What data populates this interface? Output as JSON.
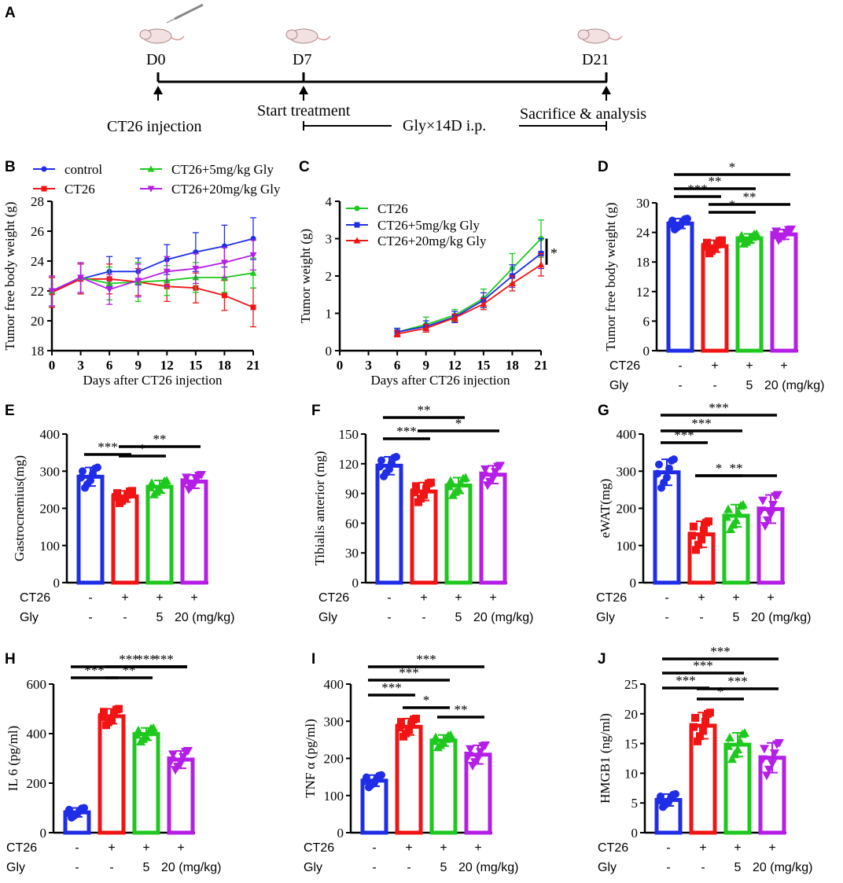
{
  "panel_labels": [
    "A",
    "B",
    "C",
    "D",
    "E",
    "F",
    "G",
    "H",
    "I",
    "J"
  ],
  "timeline": {
    "days": [
      "D0",
      "D7",
      "D21"
    ],
    "injection": "CT26 injection",
    "start": "Start treatment",
    "sacrifice": "Sacrifice & analysis",
    "treatment": "Gly×14D i.p."
  },
  "colors": {
    "control": "#1f2de6",
    "ct26": "#f01414",
    "gly5": "#1ec81e",
    "gly20": "#b41ee6"
  },
  "xlabels": {
    "row_ct26": [
      "CT26",
      "-",
      "+",
      "+",
      "+"
    ],
    "row_gly": [
      "Gly",
      "-",
      "-",
      "5",
      "20 (mg/kg)"
    ]
  },
  "chart_data": [
    {
      "panel": "B",
      "type": "line",
      "title": "",
      "xlabel": "Days after CT26 injection",
      "ylabel": "Tumor free body weight (g)",
      "x": [
        0,
        3,
        6,
        9,
        12,
        15,
        18,
        21
      ],
      "xticks": [
        "0",
        "3",
        "6",
        "9",
        "12",
        "15",
        "18",
        "21"
      ],
      "ylim": [
        18,
        28
      ],
      "yticks": [
        "18",
        "20",
        "22",
        "24",
        "26",
        "28"
      ],
      "legend": [
        "control",
        "CT26",
        "CT26+5mg/kg Gly",
        "CT26+20mg/kg Gly"
      ],
      "series": [
        {
          "name": "control",
          "values": [
            21.9,
            22.8,
            23.3,
            23.3,
            24.1,
            24.6,
            25.0,
            25.5
          ],
          "err": [
            1.0,
            1.0,
            1.0,
            0.9,
            1.0,
            1.3,
            1.4,
            1.4
          ]
        },
        {
          "name": "CT26",
          "values": [
            21.9,
            22.8,
            22.8,
            22.6,
            22.3,
            22.2,
            21.7,
            20.9
          ],
          "err": [
            1.0,
            1.0,
            1.0,
            0.9,
            1.0,
            1.0,
            1.0,
            1.3
          ]
        },
        {
          "name": "CT26+5mg/kg Gly",
          "values": [
            22.0,
            22.9,
            22.5,
            22.6,
            22.7,
            22.9,
            22.9,
            23.2
          ],
          "err": [
            1.0,
            1.0,
            1.1,
            1.3,
            1.0,
            1.0,
            1.0,
            1.0
          ]
        },
        {
          "name": "CT26+20mg/kg Gly",
          "values": [
            22.0,
            22.9,
            22.1,
            22.7,
            23.3,
            23.5,
            23.9,
            24.4
          ],
          "err": [
            1.0,
            1.0,
            1.0,
            1.1,
            1.0,
            1.0,
            1.0,
            1.0
          ]
        }
      ]
    },
    {
      "panel": "C",
      "type": "line",
      "xlabel": "Days after CT26 injection",
      "ylabel": "Tumor weight (g)",
      "x": [
        6,
        9,
        12,
        15,
        18,
        21
      ],
      "xticks": [
        "0",
        "3",
        "6",
        "9",
        "12",
        "15",
        "18",
        "21"
      ],
      "ylim": [
        0,
        4
      ],
      "yticks": [
        "0",
        "1",
        "2",
        "3",
        "4"
      ],
      "legend": [
        "CT26",
        "CT26+5mg/kg Gly",
        "CT26+20mg/kg Gly"
      ],
      "significance": "*",
      "series": [
        {
          "name": "CT26",
          "values": [
            0.5,
            0.7,
            0.95,
            1.4,
            2.2,
            3.0
          ],
          "err": [
            0.1,
            0.2,
            0.15,
            0.25,
            0.4,
            0.5
          ]
        },
        {
          "name": "CT26+5mg/kg Gly",
          "values": [
            0.5,
            0.65,
            0.9,
            1.35,
            2.0,
            2.6
          ],
          "err": [
            0.1,
            0.15,
            0.15,
            0.2,
            0.3,
            0.4
          ]
        },
        {
          "name": "CT26+20mg/kg Gly",
          "values": [
            0.45,
            0.6,
            0.88,
            1.25,
            1.8,
            2.3
          ],
          "err": [
            0.08,
            0.1,
            0.1,
            0.15,
            0.2,
            0.3
          ]
        }
      ]
    },
    {
      "panel": "D",
      "type": "bar",
      "ylabel": "Tumor free body weight (g)",
      "ylim": [
        0,
        30
      ],
      "yticks": [
        "0",
        "6",
        "12",
        "18",
        "24",
        "30"
      ],
      "categories": [
        "control",
        "CT26",
        "CT26+5mg/kg Gly",
        "CT26+20mg/kg Gly"
      ],
      "values": [
        25.8,
        21.2,
        22.8,
        23.6
      ],
      "err": [
        1.0,
        1.2,
        0.9,
        1.0
      ],
      "brackets": [
        {
          "from": 0,
          "to": 1,
          "label": "***"
        },
        {
          "from": 0,
          "to": 2,
          "label": "**"
        },
        {
          "from": 0,
          "to": 3,
          "label": "*"
        },
        {
          "from": 1,
          "to": 2,
          "label": "*"
        },
        {
          "from": 1,
          "to": 3,
          "label": "**"
        }
      ]
    },
    {
      "panel": "E",
      "type": "bar",
      "ylabel": "Gastrocnemius(mg)",
      "ylim": [
        0,
        400
      ],
      "yticks": [
        "0",
        "100",
        "200",
        "300",
        "400"
      ],
      "categories": [
        "control",
        "CT26",
        "CT26+5mg/kg Gly",
        "CT26+20mg/kg Gly"
      ],
      "values": [
        285,
        232,
        258,
        272
      ],
      "err": [
        25,
        15,
        17,
        18
      ],
      "brackets": [
        {
          "from": 0,
          "to": 1,
          "label": "***"
        },
        {
          "from": 1,
          "to": 2,
          "label": "*"
        },
        {
          "from": 1,
          "to": 3,
          "label": "**"
        }
      ]
    },
    {
      "panel": "F",
      "type": "bar",
      "ylabel": "Tibialis anterior (mg)",
      "ylim": [
        0,
        150
      ],
      "yticks": [
        "0",
        "30",
        "60",
        "90",
        "120",
        "150"
      ],
      "categories": [
        "control",
        "CT26",
        "CT26+5mg/kg Gly",
        "CT26+20mg/kg Gly"
      ],
      "values": [
        118,
        92,
        98,
        109
      ],
      "err": [
        9,
        9,
        8,
        9
      ],
      "brackets": [
        {
          "from": 0,
          "to": 1,
          "label": "***"
        },
        {
          "from": 0,
          "to": 2,
          "label": "**"
        },
        {
          "from": 1,
          "to": 3,
          "label": "*"
        }
      ]
    },
    {
      "panel": "G",
      "type": "bar",
      "ylabel": "eWAT(mg)",
      "ylim": [
        0,
        400
      ],
      "yticks": [
        "0",
        "100",
        "200",
        "300",
        "400"
      ],
      "categories": [
        "control",
        "CT26",
        "CT26+5mg/kg Gly",
        "CT26+20mg/kg Gly"
      ],
      "values": [
        297,
        130,
        180,
        198
      ],
      "err": [
        35,
        35,
        30,
        38
      ],
      "brackets": [
        {
          "from": 0,
          "to": 1,
          "label": "***"
        },
        {
          "from": 0,
          "to": 2,
          "label": "***"
        },
        {
          "from": 0,
          "to": 3,
          "label": "***"
        },
        {
          "from": 1,
          "to": 2,
          "label": "*"
        },
        {
          "from": 1,
          "to": 3,
          "label": "**"
        }
      ]
    },
    {
      "panel": "H",
      "type": "bar",
      "ylabel": "IL 6 (pg/ml)",
      "ylim": [
        0,
        600
      ],
      "yticks": [
        "0",
        "200",
        "400",
        "600"
      ],
      "categories": [
        "control",
        "CT26",
        "CT26+5mg/kg Gly",
        "CT26+20mg/kg Gly"
      ],
      "values": [
        82,
        470,
        398,
        295
      ],
      "err": [
        18,
        30,
        25,
        35
      ],
      "brackets": [
        {
          "from": 0,
          "to": 1,
          "label": "***"
        },
        {
          "from": 0,
          "to": 3,
          "label": "***"
        },
        {
          "from": 1,
          "to": 2,
          "label": "**"
        },
        {
          "from": 1,
          "to": 3,
          "label": "***"
        },
        {
          "from": 2,
          "to": 3,
          "label": "***"
        }
      ]
    },
    {
      "panel": "I",
      "type": "bar",
      "ylabel": "TNF α (pg/ml)",
      "ylim": [
        0,
        400
      ],
      "yticks": [
        "0",
        "100",
        "200",
        "300",
        "400"
      ],
      "categories": [
        "control",
        "CT26",
        "CT26+5mg/kg Gly",
        "CT26+20mg/kg Gly"
      ],
      "values": [
        140,
        285,
        248,
        210
      ],
      "err": [
        15,
        22,
        15,
        25
      ],
      "brackets": [
        {
          "from": 0,
          "to": 1,
          "label": "***"
        },
        {
          "from": 0,
          "to": 2,
          "label": "***"
        },
        {
          "from": 0,
          "to": 3,
          "label": "***"
        },
        {
          "from": 1,
          "to": 2,
          "label": "*"
        },
        {
          "from": 2,
          "to": 3,
          "label": "**"
        }
      ]
    },
    {
      "panel": "J",
      "type": "bar",
      "ylabel": "HMGB1  (ng/ml)",
      "ylim": [
        0,
        25
      ],
      "yticks": [
        "0",
        "5",
        "10",
        "15",
        "20",
        "25"
      ],
      "categories": [
        "control",
        "CT26",
        "CT26+5mg/kg Gly",
        "CT26+20mg/kg Gly"
      ],
      "values": [
        5.5,
        18.0,
        14.8,
        12.6
      ],
      "err": [
        1.0,
        2.2,
        2.0,
        2.5
      ],
      "brackets": [
        {
          "from": 0,
          "to": 1,
          "label": "***"
        },
        {
          "from": 0,
          "to": 2,
          "label": "***"
        },
        {
          "from": 0,
          "to": 3,
          "label": "***"
        },
        {
          "from": 1,
          "to": 2,
          "label": "*"
        },
        {
          "from": 1,
          "to": 3,
          "label": "***"
        }
      ]
    }
  ]
}
